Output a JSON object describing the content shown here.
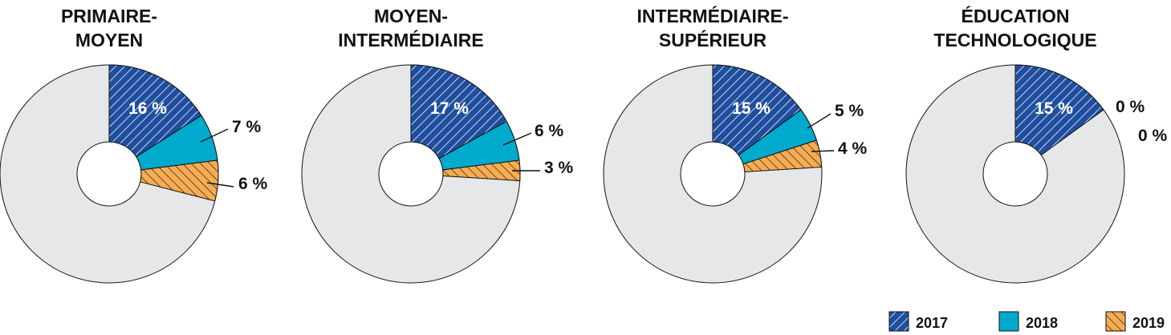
{
  "colors": {
    "s2017": "#1f4e9e",
    "s2018": "#00aacc",
    "s2019": "#f7ac52",
    "remainder": "#e6e7e8"
  },
  "chart_data": [
    {
      "type": "pie",
      "title_lines": [
        "PRIMAIRE-",
        "MOYEN"
      ],
      "slices": [
        {
          "series": "2017",
          "value": 16,
          "label": "16 %"
        },
        {
          "series": "2018",
          "value": 7,
          "label": "7 %"
        },
        {
          "series": "2019",
          "value": 6,
          "label": "6 %"
        }
      ]
    },
    {
      "type": "pie",
      "title_lines": [
        "MOYEN-",
        "INTERMÉDIAIRE"
      ],
      "slices": [
        {
          "series": "2017",
          "value": 17,
          "label": "17 %"
        },
        {
          "series": "2018",
          "value": 6,
          "label": "6 %"
        },
        {
          "series": "2019",
          "value": 3,
          "label": "3 %"
        }
      ]
    },
    {
      "type": "pie",
      "title_lines": [
        "INTERMÉDIAIRE-",
        "SUPÉRIEUR"
      ],
      "slices": [
        {
          "series": "2017",
          "value": 15,
          "label": "15 %"
        },
        {
          "series": "2018",
          "value": 5,
          "label": "5 %"
        },
        {
          "series": "2019",
          "value": 4,
          "label": "4 %"
        }
      ]
    },
    {
      "type": "pie",
      "title_lines": [
        "ÉDUCATION",
        "TECHNOLOGIQUE"
      ],
      "slices": [
        {
          "series": "2017",
          "value": 15,
          "label": "15 %"
        },
        {
          "series": "2018",
          "value": 0,
          "label": "0 %"
        },
        {
          "series": "2019",
          "value": 0,
          "label": "0 %"
        }
      ]
    }
  ],
  "legend": {
    "placement": "bottom-right",
    "items": [
      {
        "series": "2017",
        "label": "2017"
      },
      {
        "series": "2018",
        "label": "2018"
      },
      {
        "series": "2019",
        "label": "2019"
      }
    ]
  }
}
